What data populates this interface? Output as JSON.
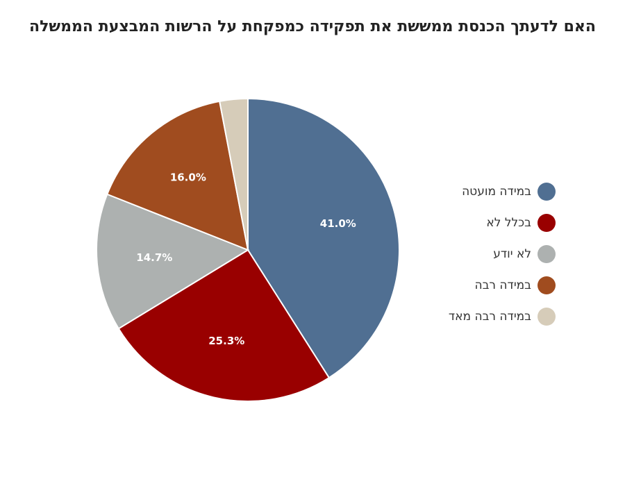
{
  "chart_data": {
    "type": "pie",
    "title": "האם לדעתך הכנסת ממששת את תפקידה כמפקחת על הרשות המבצעת הממשלה",
    "legend_position": "right",
    "slices": [
      {
        "label": "במידה מועטה",
        "value": 41.0,
        "data_label": "41.0%",
        "color": "#506f92",
        "show_label": true
      },
      {
        "label": "בכלל לא",
        "value": 25.3,
        "data_label": "25.3%",
        "color": "#990000",
        "show_label": true
      },
      {
        "label": "לא יודע",
        "value": 14.7,
        "data_label": "14.7%",
        "color": "#adb1b0",
        "show_label": true
      },
      {
        "label": "במידה רבה",
        "value": 16.0,
        "data_label": "16.0%",
        "color": "#a04c1f",
        "show_label": true
      },
      {
        "label": "במידה רבה מאד",
        "value": 3.0,
        "data_label": "",
        "color": "#d6ccb9",
        "show_label": false
      }
    ]
  }
}
